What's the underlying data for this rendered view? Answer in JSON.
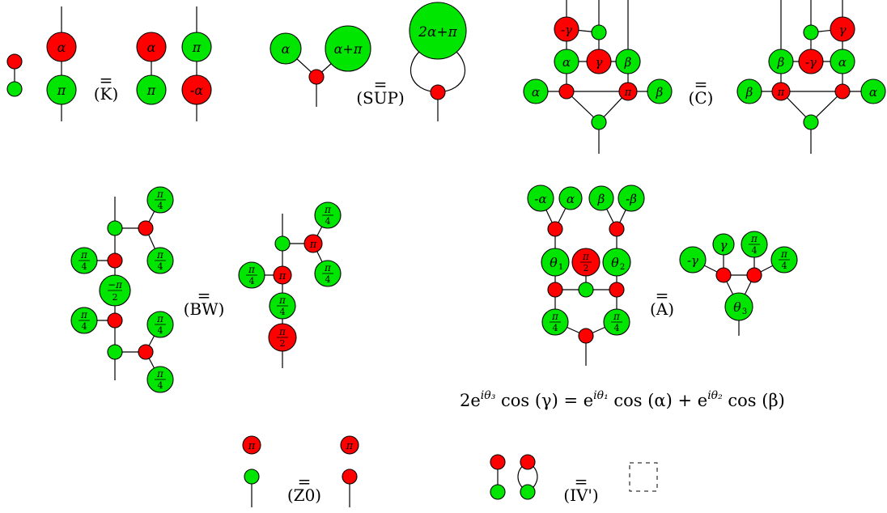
{
  "colors": {
    "green": "#00e600",
    "red": "#ff0000",
    "wire": "#000000"
  },
  "rules": {
    "K": "(K)",
    "SUP": "(SUP)",
    "C": "(C)",
    "BW": "(BW)",
    "A": "(A)",
    "Z0": "(Z0)",
    "IV": "(IV')"
  },
  "phases": {
    "alpha": "α",
    "pi": "π",
    "neg_alpha": "-α",
    "alpha_plus_pi": "α+π",
    "two_alpha_plus_pi": "2α+π",
    "neg_gamma": "-γ",
    "gamma": "γ",
    "beta": "β",
    "neg_beta": "-β",
    "quarter_num": "π",
    "quarter_den": "4",
    "neg_half_num": "−π",
    "half_num": "π",
    "half_den": "2",
    "theta1": "θ",
    "theta1_sub": "1",
    "theta2": "θ",
    "theta2_sub": "2",
    "theta3": "θ",
    "theta3_sub": "3"
  },
  "formula": {
    "lhs": "2e",
    "lhs_sup": "iθ₃",
    "lhs_rest": " cos (γ) = e",
    "mid_sup": "iθ₁",
    "mid_rest": " cos (α) + e",
    "rhs_sup": "iθ₂",
    "rhs_rest": " cos (β)"
  }
}
